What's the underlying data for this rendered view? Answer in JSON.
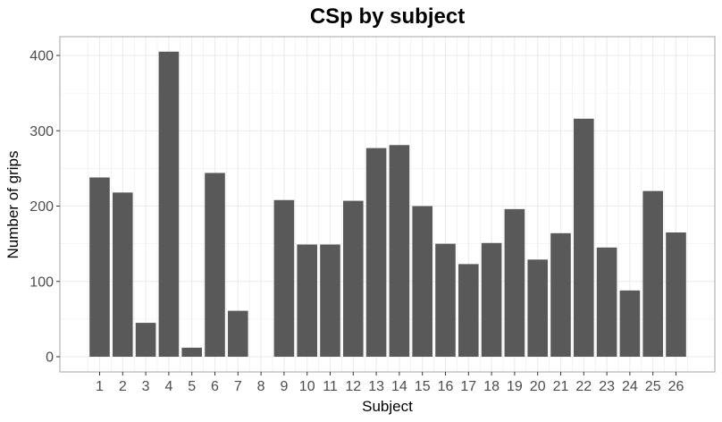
{
  "chart_data": {
    "type": "bar",
    "title": "CSp by subject",
    "xlabel": "Subject",
    "ylabel": "Number of grips",
    "categories": [
      "1",
      "2",
      "3",
      "4",
      "5",
      "6",
      "7",
      "8",
      "9",
      "10",
      "11",
      "12",
      "13",
      "14",
      "15",
      "16",
      "17",
      "18",
      "19",
      "20",
      "21",
      "22",
      "23",
      "24",
      "25",
      "26"
    ],
    "values": [
      238,
      218,
      45,
      405,
      12,
      244,
      61,
      0,
      208,
      149,
      149,
      207,
      277,
      281,
      200,
      150,
      123,
      151,
      196,
      129,
      164,
      316,
      145,
      88,
      220,
      165
    ],
    "ylim": [
      0,
      400
    ],
    "yticks": [
      0,
      100,
      200,
      300,
      400
    ],
    "grid": true,
    "bar_color": "#595959",
    "grid_color": "#ebebeb",
    "panel_border_color": "#b3b3b3"
  }
}
